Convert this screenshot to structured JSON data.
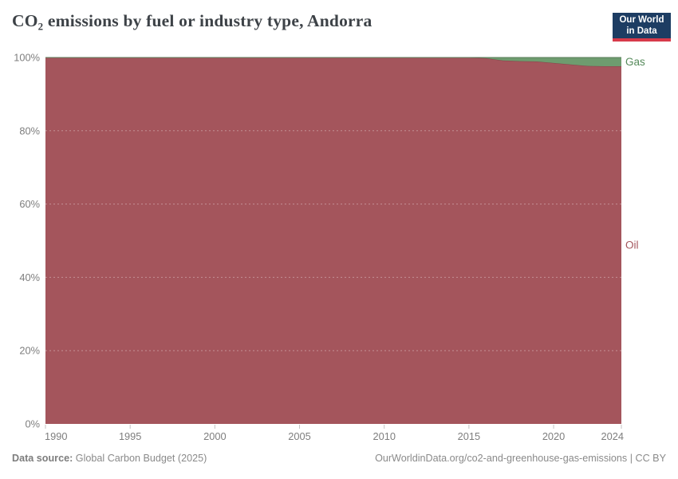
{
  "header": {
    "title": "CO₂ emissions by fuel or industry type, Andorra",
    "logo": {
      "line1": "Our World",
      "line2": "in Data",
      "bg_color": "#1d3d63",
      "bar_color": "#d73a4a"
    }
  },
  "chart_data": {
    "type": "area",
    "stacking": "percent",
    "title": "CO₂ emissions by fuel or industry type, Andorra",
    "xlabel": "",
    "ylabel": "",
    "x_range": [
      1990,
      2024
    ],
    "ylim_percent": [
      0,
      100
    ],
    "grid": "dashed horizontal gridlines",
    "legend_position": "series labels at right edge",
    "x": [
      1990,
      1991,
      1992,
      1993,
      1994,
      1995,
      1996,
      1997,
      1998,
      1999,
      2000,
      2001,
      2002,
      2003,
      2004,
      2005,
      2006,
      2007,
      2008,
      2009,
      2010,
      2011,
      2012,
      2013,
      2014,
      2015,
      2016,
      2017,
      2018,
      2019,
      2020,
      2021,
      2022,
      2023,
      2024
    ],
    "series": [
      {
        "name": "Oil",
        "color": "#a4555c",
        "label_color": "#a4555c",
        "values": [
          100,
          100,
          100,
          100,
          100,
          100,
          100,
          100,
          100,
          100,
          100,
          100,
          100,
          100,
          100,
          100,
          100,
          100,
          100,
          100,
          100,
          100,
          100,
          100,
          100,
          100,
          99.8,
          99.2,
          99.0,
          98.9,
          98.5,
          98.1,
          97.7,
          97.6,
          97.6
        ]
      },
      {
        "name": "Gas",
        "color": "#6e9c6f",
        "label_color": "#558a5a",
        "values": [
          0,
          0,
          0,
          0,
          0,
          0,
          0,
          0,
          0,
          0,
          0,
          0,
          0,
          0,
          0,
          0,
          0,
          0,
          0,
          0,
          0,
          0,
          0,
          0,
          0,
          0,
          0.2,
          0.8,
          1.0,
          1.1,
          1.5,
          1.9,
          2.3,
          2.4,
          2.4
        ]
      }
    ],
    "x_ticks": [
      "1990",
      "1995",
      "2000",
      "2005",
      "2010",
      "2015",
      "2020",
      "2024"
    ],
    "y_ticks": [
      "0%",
      "20%",
      "40%",
      "60%",
      "80%",
      "100%"
    ]
  },
  "footer": {
    "source_label": "Data source:",
    "source_value": " Global Carbon Budget (2025)",
    "attribution": "OurWorldinData.org/co2-and-greenhouse-gas-emissions | CC BY"
  }
}
